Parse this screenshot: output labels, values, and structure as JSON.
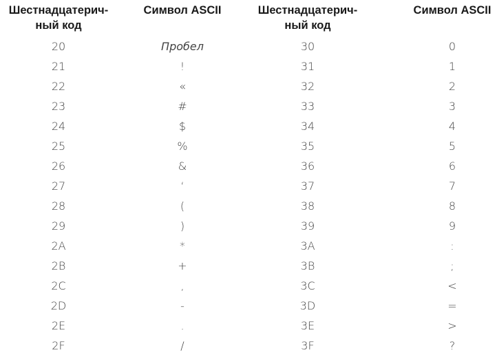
{
  "headers": [
    "Шестнадцатерич-\nный код",
    "Символ ASCII",
    "Шестнадцатерич-\nный код",
    "Символ ASCII"
  ],
  "left": [
    [
      "20",
      "Пробел"
    ],
    [
      "21",
      "!"
    ],
    [
      "22",
      "«"
    ],
    [
      "23",
      "#"
    ],
    [
      "24",
      "$"
    ],
    [
      "25",
      "%"
    ],
    [
      "26",
      "&"
    ],
    [
      "27",
      "‘"
    ],
    [
      "28",
      "("
    ],
    [
      "29",
      ")"
    ],
    [
      "2A",
      "*"
    ],
    [
      "2B",
      "+"
    ],
    [
      "2C",
      ","
    ],
    [
      "2D",
      "-"
    ],
    [
      "2E",
      "."
    ],
    [
      "2F",
      "/"
    ]
  ],
  "right": [
    [
      "30",
      "0"
    ],
    [
      "31",
      "1"
    ],
    [
      "32",
      "2"
    ],
    [
      "33",
      "3"
    ],
    [
      "34",
      "4"
    ],
    [
      "35",
      "5"
    ],
    [
      "36",
      "6"
    ],
    [
      "37",
      "7"
    ],
    [
      "38",
      "8"
    ],
    [
      "39",
      "9"
    ],
    [
      "3A",
      ":"
    ],
    [
      "3B",
      ";"
    ],
    [
      "3C",
      "<"
    ],
    [
      "3D",
      "="
    ],
    [
      "3E",
      ">"
    ],
    [
      "3F",
      "?"
    ]
  ]
}
